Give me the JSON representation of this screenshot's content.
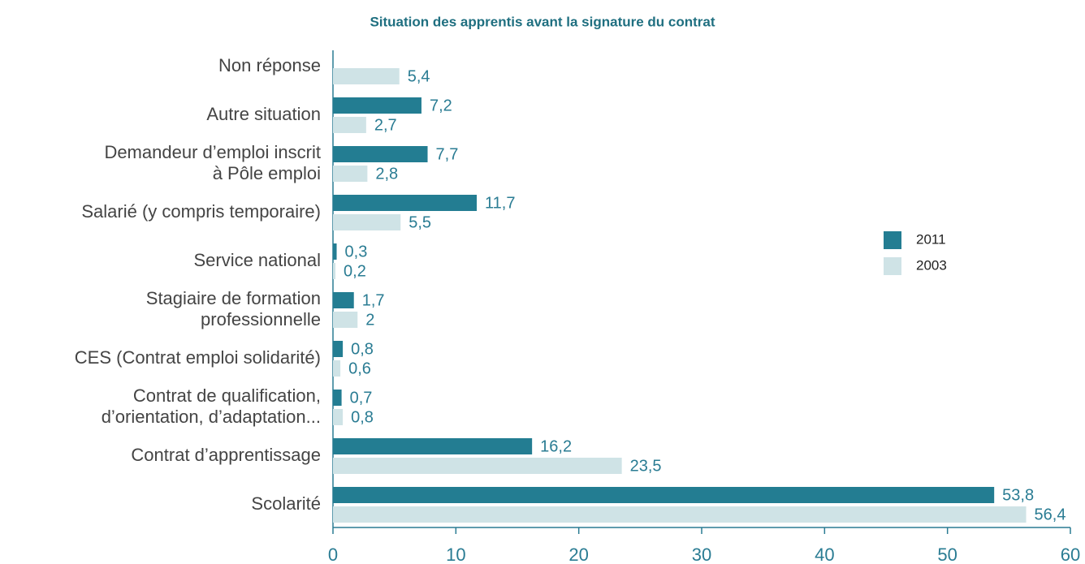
{
  "chart_data": {
    "type": "hbar",
    "title": "Situation des apprentis avant la signature du contrat",
    "categories": [
      [
        "Non réponse"
      ],
      [
        "Autre situation"
      ],
      [
        "Demandeur d’emploi inscrit",
        "à Pôle emploi"
      ],
      [
        "Salarié (y compris temporaire)"
      ],
      [
        "Service national"
      ],
      [
        "Stagiaire de formation",
        "professionnelle"
      ],
      [
        "CES (Contrat emploi solidarité)"
      ],
      [
        "Contrat de qualification,",
        "d’orientation, d’adaptation..."
      ],
      [
        "Contrat d’apprentissage"
      ],
      [
        "Scolarité"
      ]
    ],
    "series": [
      {
        "name": "2011",
        "color": "#237d92",
        "values": [
          null,
          7.2,
          7.7,
          11.7,
          0.3,
          1.7,
          0.8,
          0.7,
          16.2,
          53.8
        ],
        "value_labels": [
          null,
          "7,2",
          "7,7",
          "11,7",
          "0,3",
          "1,7",
          "0,8",
          "0,7",
          "16,2",
          "53,8"
        ]
      },
      {
        "name": "2003",
        "color": "#cfe3e6",
        "values": [
          5.4,
          2.7,
          2.8,
          5.5,
          0.2,
          2,
          0.6,
          0.8,
          23.5,
          56.4
        ],
        "value_labels": [
          "5,4",
          "2,7",
          "2,8",
          "5,5",
          "0,2",
          "2",
          "0,6",
          "0,8",
          "23,5",
          "56,4"
        ]
      }
    ],
    "xlim": [
      0,
      60
    ],
    "xticks": [
      0,
      10,
      20,
      30,
      40,
      50,
      60
    ]
  }
}
